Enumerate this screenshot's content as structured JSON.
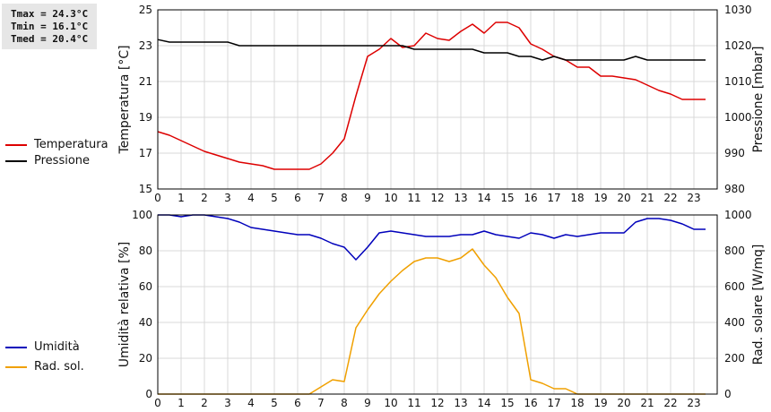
{
  "stats": {
    "tmax": "Tmax = 24.3°C",
    "tmin": "Tmin = 16.1°C",
    "tmed": "Tmed = 20.4°C"
  },
  "legend_top": [
    {
      "label": "Temperatura",
      "color": "#dd0000"
    },
    {
      "label": "Pressione",
      "color": "#000000"
    }
  ],
  "legend_bottom": [
    {
      "label": "Umidità",
      "color": "#0000bb"
    },
    {
      "label": "Rad. sol.",
      "color": "#f0a000"
    }
  ],
  "chart_data": [
    {
      "type": "line",
      "grid": true,
      "xlim": [
        0,
        24
      ],
      "x_ticks": [
        0,
        1,
        2,
        3,
        4,
        5,
        6,
        7,
        8,
        9,
        10,
        11,
        12,
        13,
        14,
        15,
        16,
        17,
        18,
        19,
        20,
        21,
        22,
        23
      ],
      "ylabel": "Temperatura [°C]",
      "ylim": [
        15,
        25
      ],
      "y_ticks": [
        15,
        17,
        19,
        21,
        23,
        25
      ],
      "ylabel_right": "Pressione [mbar]",
      "ylim_right": [
        980,
        1030
      ],
      "y_ticks_right": [
        980,
        990,
        1000,
        1010,
        1020,
        1030
      ],
      "series": [
        {
          "name": "Temperatura",
          "color": "#dd0000",
          "axis": "left",
          "x": [
            0,
            0.5,
            1,
            1.5,
            2,
            2.5,
            3,
            3.5,
            4,
            4.5,
            5,
            5.5,
            6,
            6.5,
            7,
            7.5,
            8,
            8.5,
            9,
            9.5,
            10,
            10.5,
            11,
            11.5,
            12,
            12.5,
            13,
            13.5,
            14,
            14.5,
            15,
            15.5,
            16,
            16.5,
            17,
            17.5,
            18,
            18.5,
            19,
            19.5,
            20,
            20.5,
            21,
            21.5,
            22,
            22.5,
            23,
            23.5
          ],
          "values": [
            18.2,
            18,
            17.7,
            17.4,
            17.1,
            16.9,
            16.7,
            16.5,
            16.4,
            16.3,
            16.1,
            16.1,
            16.1,
            16.1,
            16.4,
            17,
            17.8,
            20.2,
            22.4,
            22.8,
            23.4,
            22.9,
            23,
            23.7,
            23.4,
            23.3,
            23.8,
            24.2,
            23.7,
            24.3,
            24.3,
            24,
            23.1,
            22.8,
            22.4,
            22.2,
            21.8,
            21.8,
            21.3,
            21.3,
            21.2,
            21.1,
            20.8,
            20.5,
            20.3,
            20,
            20,
            20
          ]
        },
        {
          "name": "Pressione",
          "color": "#000000",
          "axis": "right",
          "x": [
            0,
            0.5,
            1,
            1.5,
            2,
            2.5,
            3,
            3.5,
            4,
            4.5,
            5,
            5.5,
            6,
            6.5,
            7,
            7.5,
            8,
            8.5,
            9,
            9.5,
            10,
            10.5,
            11,
            11.5,
            12,
            12.5,
            13,
            13.5,
            14,
            14.5,
            15,
            15.5,
            16,
            16.5,
            17,
            17.5,
            18,
            18.5,
            19,
            19.5,
            20,
            20.5,
            21,
            21.5,
            22,
            22.5,
            23,
            23.5
          ],
          "values": [
            1021.7,
            1021,
            1021,
            1021,
            1021,
            1021,
            1021,
            1020,
            1020,
            1020,
            1020,
            1020,
            1020,
            1020,
            1020,
            1020,
            1020,
            1020,
            1020,
            1020,
            1020,
            1020,
            1019,
            1019,
            1019,
            1019,
            1019,
            1019,
            1018,
            1018,
            1018,
            1017,
            1017,
            1016,
            1017,
            1016,
            1016,
            1016,
            1016,
            1016,
            1016,
            1017,
            1016,
            1016,
            1016,
            1016,
            1016,
            1016
          ]
        }
      ]
    },
    {
      "type": "line",
      "grid": true,
      "xlim": [
        0,
        24
      ],
      "x_ticks": [
        0,
        1,
        2,
        3,
        4,
        5,
        6,
        7,
        8,
        9,
        10,
        11,
        12,
        13,
        14,
        15,
        16,
        17,
        18,
        19,
        20,
        21,
        22,
        23
      ],
      "ylabel": "Umidità relativa [%]",
      "ylim": [
        0,
        100
      ],
      "y_ticks": [
        0,
        20,
        40,
        60,
        80,
        100
      ],
      "ylabel_right": "Rad. solare [W/mq]",
      "ylim_right": [
        0,
        1000
      ],
      "y_ticks_right": [
        0,
        200,
        400,
        600,
        800,
        1000
      ],
      "series": [
        {
          "name": "Umidità",
          "color": "#0000bb",
          "axis": "left",
          "x": [
            0,
            0.5,
            1,
            1.5,
            2,
            2.5,
            3,
            3.5,
            4,
            4.5,
            5,
            5.5,
            6,
            6.5,
            7,
            7.5,
            8,
            8.5,
            9,
            9.5,
            10,
            10.5,
            11,
            11.5,
            12,
            12.5,
            13,
            13.5,
            14,
            14.5,
            15,
            15.5,
            16,
            16.5,
            17,
            17.5,
            18,
            18.5,
            19,
            19.5,
            20,
            20.5,
            21,
            21.5,
            22,
            22.5,
            23,
            23.5
          ],
          "values": [
            100,
            100,
            99,
            100,
            100,
            99,
            98,
            96,
            93,
            92,
            91,
            90,
            89,
            89,
            87,
            84,
            82,
            75,
            82,
            90,
            91,
            90,
            89,
            88,
            88,
            88,
            89,
            89,
            91,
            89,
            88,
            87,
            90,
            89,
            87,
            89,
            88,
            89,
            90,
            90,
            90,
            96,
            98,
            98,
            97,
            95,
            92,
            92
          ]
        },
        {
          "name": "Rad. sol.",
          "color": "#f0a000",
          "axis": "right",
          "x": [
            0,
            0.5,
            1,
            1.5,
            2,
            2.5,
            3,
            3.5,
            4,
            4.5,
            5,
            5.5,
            6,
            6.5,
            7,
            7.5,
            8,
            8.5,
            9,
            9.5,
            10,
            10.5,
            11,
            11.5,
            12,
            12.5,
            13,
            13.5,
            14,
            14.5,
            15,
            15.5,
            16,
            16.5,
            17,
            17.5,
            18,
            18.5,
            19,
            19.5,
            20,
            20.5,
            21,
            21.5,
            22,
            22.5,
            23,
            23.5
          ],
          "values": [
            0,
            0,
            0,
            0,
            0,
            0,
            0,
            0,
            0,
            0,
            0,
            0,
            0,
            0,
            40,
            80,
            70,
            370,
            470,
            560,
            630,
            690,
            740,
            760,
            760,
            740,
            760,
            810,
            720,
            650,
            540,
            450,
            80,
            60,
            30,
            30,
            0,
            0,
            0,
            0,
            0,
            0,
            0,
            0,
            0,
            0,
            0,
            0
          ]
        }
      ]
    }
  ]
}
